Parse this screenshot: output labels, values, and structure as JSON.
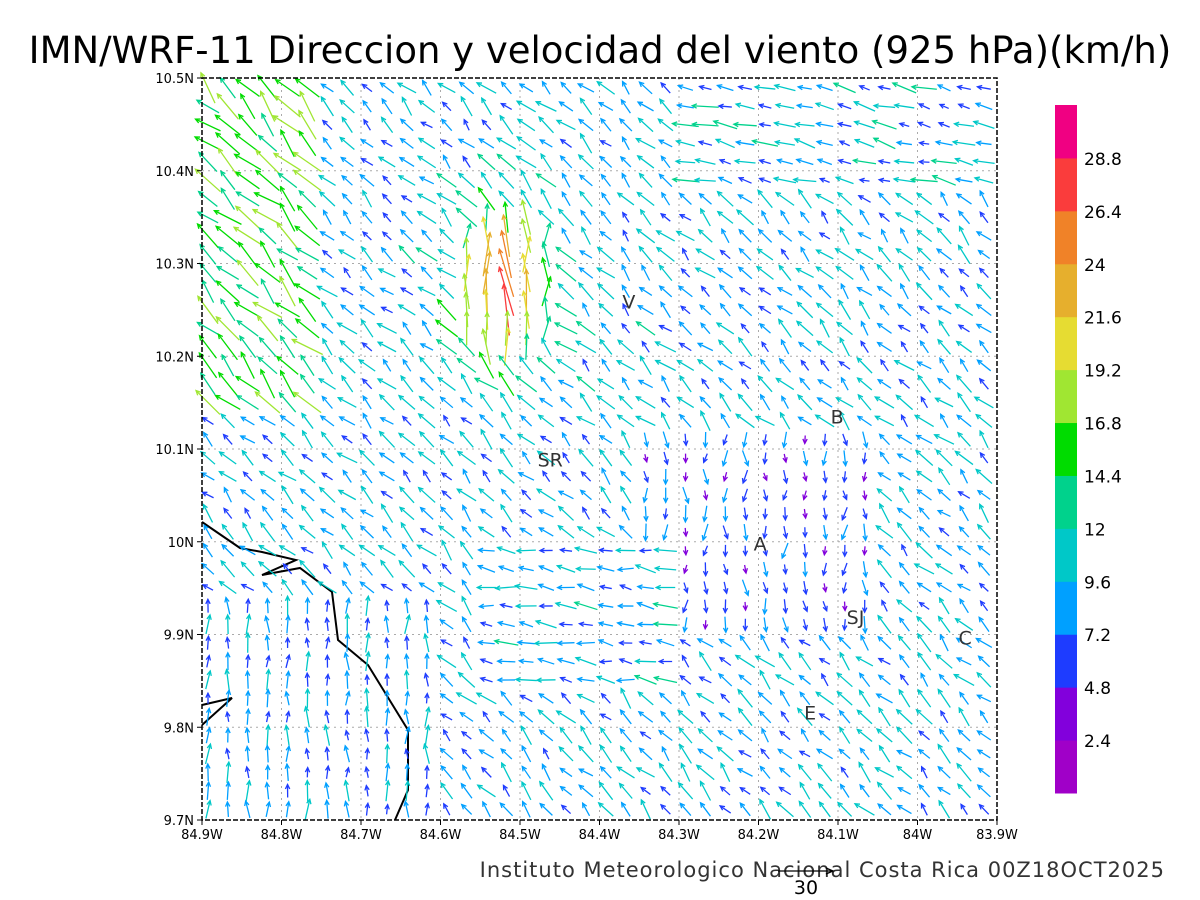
{
  "chart_data": {
    "type": "vector-field",
    "title": "IMN/WRF-11 Direccion y velocidad del viento (925 hPa)(km/h)",
    "footer": "Instituto Meteorologico Nacional Costa Rica  00Z18OCT2025",
    "units": "km/h",
    "reference_vector": {
      "value": 30,
      "label": "30"
    },
    "xaxis": {
      "range": [
        -84.9,
        -83.9
      ],
      "ticks": [
        "84.9W",
        "84.8W",
        "84.7W",
        "84.6W",
        "84.5W",
        "84.4W",
        "84.3W",
        "84.2W",
        "84.1W",
        "84W",
        "83.9W"
      ]
    },
    "yaxis": {
      "range": [
        9.7,
        10.5
      ],
      "ticks": [
        "9.7N",
        "9.8N",
        "9.9N",
        "10N",
        "10.1N",
        "10.2N",
        "10.3N",
        "10.4N",
        "10.5N"
      ]
    },
    "grid": true,
    "colorbar": {
      "labels": [
        "2.4",
        "4.8",
        "7.2",
        "9.6",
        "12",
        "14.4",
        "16.8",
        "19.2",
        "21.6",
        "24",
        "26.4",
        "28.8"
      ],
      "colors": [
        "#a000c8",
        "#8200dc",
        "#1e3cff",
        "#00a0ff",
        "#00c8c8",
        "#00d28c",
        "#00dc00",
        "#a0e632",
        "#e6dc32",
        "#e6af2d",
        "#f08228",
        "#fa3c3c",
        "#f00082"
      ]
    },
    "places": [
      {
        "label": "V",
        "lon": -84.363,
        "lat": 10.26
      },
      {
        "label": "B",
        "lon": -84.101,
        "lat": 10.136
      },
      {
        "label": "SR",
        "lon": -84.462,
        "lat": 10.09
      },
      {
        "label": "A",
        "lon": -84.198,
        "lat": 9.999
      },
      {
        "label": "SJ",
        "lon": -84.078,
        "lat": 9.92
      },
      {
        "label": "C",
        "lon": -83.94,
        "lat": 9.898
      },
      {
        "label": "E",
        "lon": -84.135,
        "lat": 9.817
      }
    ]
  }
}
